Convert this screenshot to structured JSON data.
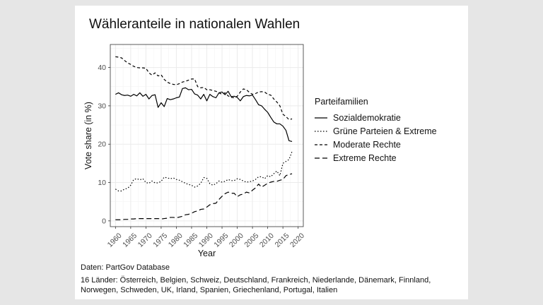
{
  "chart_data": {
    "type": "line",
    "title": "Wähleranteile in nationalen Wahlen",
    "xlabel": "Year",
    "ylabel": "Vote share (in %)",
    "xlim": [
      1958.3,
      2021.7
    ],
    "ylim": [
      -1.5,
      46
    ],
    "x_ticks": [
      "1960",
      "1965",
      "1970",
      "1975",
      "1980",
      "1985",
      "1990",
      "1995",
      "2000",
      "2005",
      "2010",
      "2015",
      "2020"
    ],
    "y_ticks": [
      "0",
      "10",
      "20",
      "30",
      "40"
    ],
    "grid": true,
    "legend_title": "Parteifamilien",
    "legend_position": "right",
    "series": [
      {
        "name": "Sozialdemokratie",
        "dash": "solid",
        "points": [
          [
            1960,
            33.0
          ],
          [
            1961,
            33.4
          ],
          [
            1962,
            32.9
          ],
          [
            1963,
            32.7
          ],
          [
            1964,
            32.8
          ],
          [
            1965,
            32.5
          ],
          [
            1966,
            33.0
          ],
          [
            1967,
            32.6
          ],
          [
            1968,
            33.4
          ],
          [
            1969,
            32.5
          ],
          [
            1970,
            33.0
          ],
          [
            1971,
            31.8
          ],
          [
            1972,
            32.7
          ],
          [
            1973,
            32.9
          ],
          [
            1974,
            29.6
          ],
          [
            1975,
            30.8
          ],
          [
            1976,
            29.8
          ],
          [
            1977,
            31.9
          ],
          [
            1978,
            31.6
          ],
          [
            1979,
            31.8
          ],
          [
            1980,
            32.1
          ],
          [
            1981,
            32.3
          ],
          [
            1982,
            34.5
          ],
          [
            1983,
            34.7
          ],
          [
            1984,
            34.2
          ],
          [
            1985,
            34.3
          ],
          [
            1986,
            33.1
          ],
          [
            1987,
            32.8
          ],
          [
            1988,
            31.8
          ],
          [
            1989,
            33.0
          ],
          [
            1990,
            31.3
          ],
          [
            1991,
            33.0
          ],
          [
            1992,
            32.4
          ],
          [
            1993,
            32.1
          ],
          [
            1994,
            33.4
          ],
          [
            1995,
            33.6
          ],
          [
            1996,
            32.9
          ],
          [
            1997,
            33.8
          ],
          [
            1998,
            32.4
          ],
          [
            1999,
            32.5
          ],
          [
            2000,
            32.2
          ],
          [
            2001,
            31.3
          ],
          [
            2002,
            32.4
          ],
          [
            2003,
            32.7
          ],
          [
            2004,
            32.6
          ],
          [
            2005,
            32.8
          ],
          [
            2006,
            31.6
          ],
          [
            2007,
            30.3
          ],
          [
            2008,
            30.0
          ],
          [
            2009,
            29.1
          ],
          [
            2010,
            28.3
          ],
          [
            2011,
            27.0
          ],
          [
            2012,
            25.8
          ],
          [
            2013,
            25.3
          ],
          [
            2014,
            25.3
          ],
          [
            2015,
            24.7
          ],
          [
            2016,
            23.6
          ],
          [
            2017,
            20.9
          ],
          [
            2018,
            20.7
          ]
        ]
      },
      {
        "name": "Grüne Parteien & Extreme",
        "dash": "dotted",
        "points": [
          [
            1960,
            8.3
          ],
          [
            1961,
            7.8
          ],
          [
            1962,
            7.8
          ],
          [
            1963,
            8.3
          ],
          [
            1964,
            8.5
          ],
          [
            1965,
            9.3
          ],
          [
            1966,
            10.8
          ],
          [
            1967,
            11.0
          ],
          [
            1968,
            10.7
          ],
          [
            1969,
            11.0
          ],
          [
            1970,
            10.0
          ],
          [
            1971,
            9.8
          ],
          [
            1972,
            10.4
          ],
          [
            1973,
            9.9
          ],
          [
            1974,
            9.9
          ],
          [
            1975,
            10.3
          ],
          [
            1976,
            11.4
          ],
          [
            1977,
            11.2
          ],
          [
            1978,
            11.0
          ],
          [
            1979,
            11.2
          ],
          [
            1980,
            10.8
          ],
          [
            1981,
            10.6
          ],
          [
            1982,
            10.2
          ],
          [
            1983,
            9.8
          ],
          [
            1984,
            9.5
          ],
          [
            1985,
            9.3
          ],
          [
            1986,
            8.8
          ],
          [
            1987,
            9.1
          ],
          [
            1988,
            9.8
          ],
          [
            1989,
            11.3
          ],
          [
            1990,
            11.1
          ],
          [
            1991,
            9.7
          ],
          [
            1992,
            9.3
          ],
          [
            1993,
            9.7
          ],
          [
            1994,
            10.4
          ],
          [
            1995,
            10.1
          ],
          [
            1996,
            10.3
          ],
          [
            1997,
            10.8
          ],
          [
            1998,
            10.5
          ],
          [
            1999,
            10.5
          ],
          [
            2000,
            11.0
          ],
          [
            2001,
            10.8
          ],
          [
            2002,
            10.4
          ],
          [
            2003,
            10.1
          ],
          [
            2004,
            10.2
          ],
          [
            2005,
            10.4
          ],
          [
            2006,
            10.8
          ],
          [
            2007,
            11.5
          ],
          [
            2008,
            11.5
          ],
          [
            2009,
            11.0
          ],
          [
            2010,
            11.8
          ],
          [
            2011,
            11.5
          ],
          [
            2012,
            12.3
          ],
          [
            2013,
            13.0
          ],
          [
            2014,
            11.8
          ],
          [
            2015,
            15.0
          ],
          [
            2016,
            15.5
          ],
          [
            2017,
            16.0
          ],
          [
            2018,
            18.1
          ]
        ]
      },
      {
        "name": "Moderate Rechte",
        "dash": "dashed",
        "points": [
          [
            1960,
            42.8
          ],
          [
            1961,
            42.7
          ],
          [
            1962,
            42.5
          ],
          [
            1963,
            41.8
          ],
          [
            1964,
            41.2
          ],
          [
            1965,
            40.8
          ],
          [
            1966,
            40.3
          ],
          [
            1967,
            40.0
          ],
          [
            1968,
            39.9
          ],
          [
            1969,
            39.9
          ],
          [
            1970,
            39.8
          ],
          [
            1971,
            38.6
          ],
          [
            1972,
            38.0
          ],
          [
            1973,
            38.6
          ],
          [
            1974,
            37.8
          ],
          [
            1975,
            38.1
          ],
          [
            1976,
            36.9
          ],
          [
            1977,
            36.2
          ],
          [
            1978,
            35.8
          ],
          [
            1979,
            35.6
          ],
          [
            1980,
            35.5
          ],
          [
            1981,
            35.8
          ],
          [
            1982,
            36.2
          ],
          [
            1983,
            36.4
          ],
          [
            1984,
            36.7
          ],
          [
            1985,
            37.0
          ],
          [
            1986,
            37.0
          ],
          [
            1987,
            35.0
          ],
          [
            1988,
            34.7
          ],
          [
            1989,
            34.8
          ],
          [
            1990,
            34.2
          ],
          [
            1991,
            34.2
          ],
          [
            1992,
            34.0
          ],
          [
            1993,
            33.8
          ],
          [
            1994,
            33.4
          ],
          [
            1995,
            33.0
          ],
          [
            1996,
            33.4
          ],
          [
            1997,
            32.6
          ],
          [
            1998,
            32.2
          ],
          [
            1999,
            32.1
          ],
          [
            2000,
            32.5
          ],
          [
            2001,
            33.6
          ],
          [
            2002,
            34.4
          ],
          [
            2003,
            34.2
          ],
          [
            2004,
            33.5
          ],
          [
            2005,
            33.0
          ],
          [
            2006,
            33.2
          ],
          [
            2007,
            33.6
          ],
          [
            2008,
            33.7
          ],
          [
            2009,
            33.6
          ],
          [
            2010,
            33.0
          ],
          [
            2011,
            32.8
          ],
          [
            2012,
            31.8
          ],
          [
            2013,
            31.0
          ],
          [
            2014,
            30.0
          ],
          [
            2015,
            27.8
          ],
          [
            2016,
            27.2
          ],
          [
            2017,
            26.4
          ],
          [
            2018,
            26.6
          ]
        ]
      },
      {
        "name": "Extreme Rechte",
        "dash": "longdash",
        "points": [
          [
            1960,
            0.3
          ],
          [
            1961,
            0.3
          ],
          [
            1962,
            0.3
          ],
          [
            1963,
            0.4
          ],
          [
            1964,
            0.4
          ],
          [
            1965,
            0.5
          ],
          [
            1966,
            0.5
          ],
          [
            1967,
            0.6
          ],
          [
            1968,
            0.6
          ],
          [
            1969,
            0.6
          ],
          [
            1970,
            0.6
          ],
          [
            1971,
            0.6
          ],
          [
            1972,
            0.6
          ],
          [
            1973,
            0.6
          ],
          [
            1974,
            0.6
          ],
          [
            1975,
            0.5
          ],
          [
            1976,
            0.6
          ],
          [
            1977,
            0.7
          ],
          [
            1978,
            0.9
          ],
          [
            1979,
            0.9
          ],
          [
            1980,
            0.8
          ],
          [
            1981,
            1.0
          ],
          [
            1982,
            1.2
          ],
          [
            1983,
            1.6
          ],
          [
            1984,
            1.7
          ],
          [
            1985,
            2.0
          ],
          [
            1986,
            2.4
          ],
          [
            1987,
            2.6
          ],
          [
            1988,
            3.0
          ],
          [
            1989,
            3.1
          ],
          [
            1990,
            3.6
          ],
          [
            1991,
            4.2
          ],
          [
            1992,
            4.5
          ],
          [
            1993,
            4.6
          ],
          [
            1994,
            5.6
          ],
          [
            1995,
            6.4
          ],
          [
            1996,
            7.1
          ],
          [
            1997,
            7.5
          ],
          [
            1998,
            7.2
          ],
          [
            1999,
            7.2
          ],
          [
            2000,
            6.3
          ],
          [
            2001,
            6.8
          ],
          [
            2002,
            7.0
          ],
          [
            2003,
            7.5
          ],
          [
            2004,
            7.3
          ],
          [
            2005,
            8.0
          ],
          [
            2006,
            8.6
          ],
          [
            2007,
            9.6
          ],
          [
            2008,
            8.8
          ],
          [
            2009,
            9.3
          ],
          [
            2010,
            9.8
          ],
          [
            2011,
            10.1
          ],
          [
            2012,
            10.3
          ],
          [
            2013,
            10.3
          ],
          [
            2014,
            10.6
          ],
          [
            2015,
            10.8
          ],
          [
            2016,
            11.8
          ],
          [
            2017,
            12.1
          ],
          [
            2018,
            12.3
          ]
        ]
      }
    ]
  },
  "footer": {
    "source": "Daten: PartGov Database",
    "countries": "16 Länder: Österreich, Belgien, Schweiz, Deutschland, Frankreich, Niederlande, Dänemark, Finnland, Norwegen, Schweden, UK, Irland, Spanien, Griechenland, Portugal, Italien"
  },
  "colors": {
    "background": "#e6e6e6",
    "panel": "#ffffff",
    "line": "#000000",
    "grid": "#ebebeb",
    "panel_border": "#333333"
  }
}
